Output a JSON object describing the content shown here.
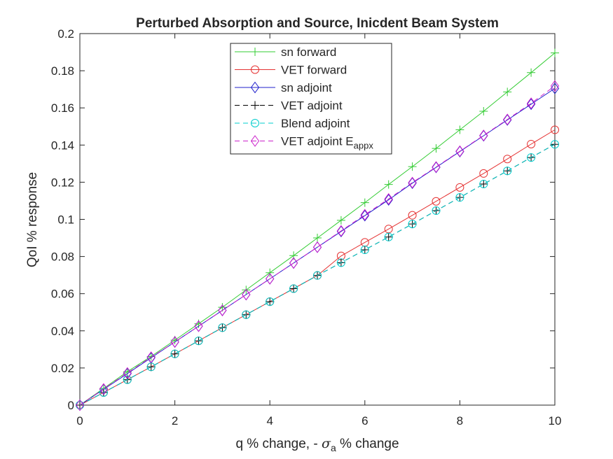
{
  "chart_data": {
    "type": "line",
    "title": "Perturbed Absorption and Source, Inicdent Beam System",
    "xlabel": {
      "prefix": "q % change, - ",
      "symbol": "σ",
      "subscript": "a",
      "suffix": " % change"
    },
    "ylabel": "QoI % response",
    "xlim": [
      0,
      10
    ],
    "ylim": [
      0,
      0.2
    ],
    "xticks": [
      "0",
      "2",
      "4",
      "6",
      "8",
      "10"
    ],
    "yticks": [
      "0",
      "0.02",
      "0.04",
      "0.06",
      "0.08",
      "0.1",
      "0.12",
      "0.14",
      "0.16",
      "0.18",
      "0.2"
    ],
    "grid": false,
    "legend_placement": "top-center",
    "x": [
      0,
      0.5,
      1,
      1.5,
      2,
      2.5,
      3,
      3.5,
      4,
      4.5,
      5,
      5.5,
      6,
      6.5,
      7,
      7.5,
      8,
      8.5,
      9,
      9.5,
      10
    ],
    "series": [
      {
        "name": "sn forward",
        "color": "#33cc33",
        "dash": "solid",
        "marker": "plus",
        "values": [
          0,
          0.009,
          0.018,
          0.0262,
          0.035,
          0.0438,
          0.0527,
          0.062,
          0.0713,
          0.0805,
          0.09,
          0.0995,
          0.109,
          0.1188,
          0.1284,
          0.1382,
          0.1482,
          0.1582,
          0.1686,
          0.179,
          0.1896
        ]
      },
      {
        "name": "VET forward",
        "color": "#e53232",
        "dash": "solid",
        "marker": "circle",
        "values": [
          0,
          0.0068,
          0.0137,
          0.0206,
          0.0276,
          0.0346,
          0.0417,
          0.0487,
          0.0557,
          0.0627,
          0.0698,
          0.0803,
          0.0876,
          0.0948,
          0.1022,
          0.1097,
          0.1172,
          0.1247,
          0.1325,
          0.1405,
          0.1482
        ]
      },
      {
        "name": "sn adjoint",
        "color": "#2020cc",
        "dash": "solid",
        "marker": "diamond",
        "values": [
          0,
          0.0085,
          0.017,
          0.0255,
          0.034,
          0.0425,
          0.051,
          0.0595,
          0.068,
          0.0765,
          0.085,
          0.0935,
          0.102,
          0.1105,
          0.1195,
          0.128,
          0.1365,
          0.145,
          0.1535,
          0.162,
          0.1705
        ]
      },
      {
        "name": "VET adjoint",
        "color": "#000000",
        "dash": "dashed",
        "marker": "plus",
        "values": [
          0,
          0.0068,
          0.0137,
          0.0206,
          0.0276,
          0.0346,
          0.0417,
          0.0487,
          0.0557,
          0.0627,
          0.0698,
          0.0767,
          0.0836,
          0.0905,
          0.0975,
          0.1047,
          0.1118,
          0.119,
          0.1261,
          0.1333,
          0.1404
        ]
      },
      {
        "name": "Blend adjoint",
        "color": "#00cccc",
        "dash": "dashed",
        "marker": "circle",
        "values": [
          0,
          0.0068,
          0.0137,
          0.0206,
          0.0276,
          0.0346,
          0.0417,
          0.0487,
          0.0557,
          0.0627,
          0.0698,
          0.0767,
          0.0836,
          0.0905,
          0.0975,
          0.1047,
          0.1118,
          0.119,
          0.1261,
          0.1333,
          0.1404
        ]
      },
      {
        "name": "VET adjoint E",
        "name_sub": "appx",
        "color": "#cc22cc",
        "dash": "dashed",
        "marker": "diamond",
        "values": [
          0,
          0.0087,
          0.0173,
          0.0258,
          0.034,
          0.0425,
          0.051,
          0.0595,
          0.068,
          0.0765,
          0.085,
          0.0938,
          0.1025,
          0.111,
          0.1198,
          0.1282,
          0.1367,
          0.1452,
          0.1538,
          0.1625,
          0.1718
        ]
      }
    ]
  }
}
